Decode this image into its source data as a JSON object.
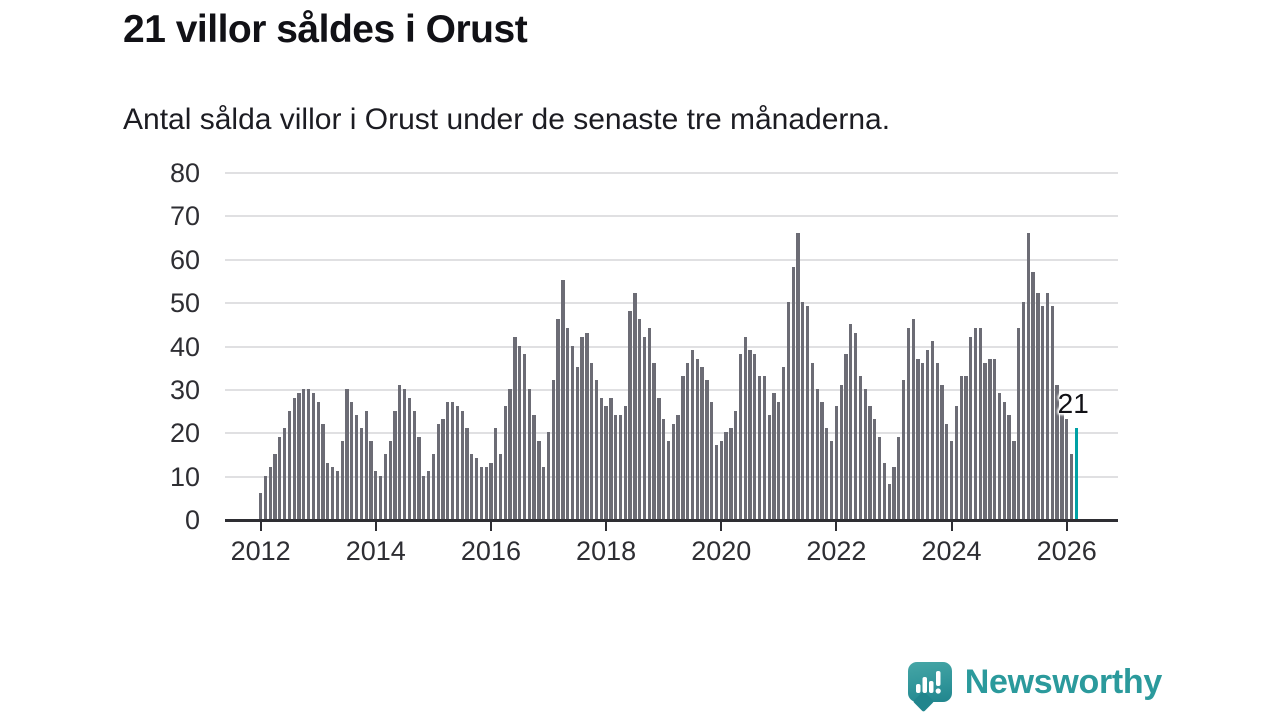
{
  "header": {
    "title": "21 villor såldes i Orust",
    "subtitle": "Antal sålda villor i Orust under de senaste tre månaderna."
  },
  "annotation": {
    "latest_value_label": "21"
  },
  "logo": {
    "text": "Newsworthy",
    "icon": "speech-bubble-bar-chart-icon"
  },
  "colors": {
    "bar": "#6c6c75",
    "highlight": "#00a1a5",
    "axis": "#2e2e33",
    "gridline": "#e0e0e2",
    "text": "#111116",
    "logo_teal": "#2b9a9c"
  },
  "chart_data": {
    "type": "bar",
    "title": "21 villor såldes i Orust",
    "subtitle": "Antal sålda villor i Orust under de senaste tre månaderna.",
    "unit": "sålda villor (rullande 3 månader)",
    "x_start": "2012-01",
    "x_tick_labels": [
      "2012",
      "2014",
      "2016",
      "2018",
      "2020",
      "2022",
      "2024",
      "2026"
    ],
    "y_ticks": [
      0,
      10,
      20,
      30,
      40,
      50,
      60,
      70,
      80
    ],
    "ylim": [
      0,
      80
    ],
    "grid": "horizontal",
    "highlight_last_bar": true,
    "last_bar_label": "21",
    "values": [
      6,
      10,
      12,
      15,
      19,
      21,
      25,
      28,
      29,
      30,
      30,
      29,
      27,
      22,
      13,
      12,
      11,
      18,
      30,
      27,
      24,
      21,
      25,
      18,
      11,
      10,
      15,
      18,
      25,
      31,
      30,
      28,
      25,
      19,
      10,
      11,
      15,
      22,
      23,
      27,
      27,
      26,
      25,
      21,
      15,
      14,
      12,
      12,
      13,
      21,
      15,
      26,
      30,
      42,
      40,
      38,
      30,
      24,
      18,
      12,
      20,
      32,
      46,
      55,
      44,
      40,
      35,
      42,
      43,
      36,
      32,
      28,
      26,
      28,
      24,
      24,
      26,
      48,
      52,
      46,
      42,
      44,
      36,
      28,
      23,
      18,
      22,
      24,
      33,
      36,
      39,
      37,
      35,
      32,
      27,
      17,
      18,
      20,
      21,
      25,
      38,
      42,
      39,
      38,
      33,
      33,
      24,
      29,
      27,
      35,
      50,
      58,
      66,
      50,
      49,
      36,
      30,
      27,
      21,
      18,
      26,
      31,
      38,
      45,
      43,
      33,
      30,
      26,
      23,
      19,
      13,
      8,
      12,
      19,
      32,
      44,
      46,
      37,
      36,
      39,
      41,
      36,
      31,
      22,
      18,
      26,
      33,
      33,
      42,
      44,
      44,
      36,
      37,
      37,
      29,
      27,
      24,
      18,
      44,
      50,
      66,
      57,
      52,
      49,
      52,
      49,
      31,
      25,
      23,
      15,
      21
    ]
  }
}
